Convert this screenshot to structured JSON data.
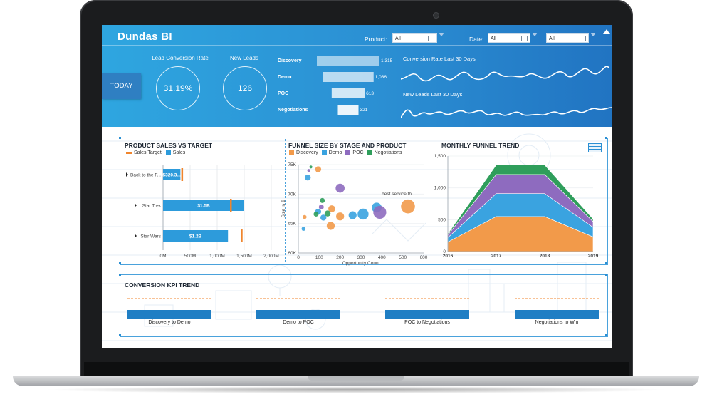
{
  "header": {
    "logo": "Dundas BI",
    "filters": {
      "product_label": "Product:",
      "product_value": "All",
      "date_label": "Date:",
      "date_from": "All",
      "date_to": "All"
    },
    "today_button": "TODAY",
    "kpis": [
      {
        "title": "Lead Conversion Rate",
        "value": "31.19%"
      },
      {
        "title": "New Leads",
        "value": "126"
      }
    ],
    "funnel_bars": [
      {
        "label": "Discovery",
        "value": "1,315",
        "num": 1315
      },
      {
        "label": "Demo",
        "value": "1,036",
        "num": 1036
      },
      {
        "label": "POC",
        "value": "613",
        "num": 613
      },
      {
        "label": "Negotiations",
        "value": "321",
        "num": 321
      }
    ],
    "spark_titles": {
      "conversion": "Conversion Rate Last 30 Days",
      "leads": "New Leads Last 30 Days"
    }
  },
  "sales_vs_target": {
    "title": "PRODUCT SALES VS TARGET",
    "legend": [
      "Sales Target",
      "Sales"
    ],
    "colors": {
      "sales": "#2d9bdb",
      "target": "#f0852d"
    },
    "chart_data": {
      "type": "bar",
      "categories": [
        "Back to the F...",
        "Star Trek",
        "Star Wars"
      ],
      "series": [
        {
          "name": "Sales",
          "values": [
            320300000,
            1500000000,
            1200000000
          ],
          "labels": [
            "$320.3...",
            "$1.5B",
            "$1.2B"
          ]
        },
        {
          "name": "Sales Target",
          "values": [
            350000000,
            1250000000,
            1450000000
          ]
        }
      ],
      "xlim": [
        0,
        2000000000
      ],
      "xticks": [
        "0M",
        "500M",
        "1,000M",
        "1,500M",
        "2,000M"
      ]
    }
  },
  "funnel_size": {
    "title": "FUNNEL SIZE BY STAGE AND PRODUCT",
    "legend": [
      "Discovery",
      "Demo",
      "POC",
      "Negotiations"
    ],
    "colors": {
      "Discovery": "#f29a4a",
      "Demo": "#3aa3e0",
      "POC": "#8e6bbf",
      "Negotiations": "#2f9e5b"
    },
    "ylabel": "Size in $",
    "xlabel": "Opportunity Count",
    "annotation": "best service th...",
    "chart_data": {
      "type": "scatter",
      "xlim": [
        0,
        600
      ],
      "ylim": [
        60,
        75
      ],
      "xticks": [
        "0",
        "100",
        "200",
        "300",
        "400",
        "500",
        "600"
      ],
      "yticks": [
        "60K",
        "65K",
        "70K",
        "75K"
      ],
      "points": [
        {
          "series": "Discovery",
          "x": 95,
          "y": 74.2,
          "r": 6
        },
        {
          "series": "Discovery",
          "x": 160,
          "y": 67.5,
          "r": 7
        },
        {
          "series": "Discovery",
          "x": 200,
          "y": 66.2,
          "r": 8
        },
        {
          "series": "Discovery",
          "x": 155,
          "y": 64.6,
          "r": 8
        },
        {
          "series": "Discovery",
          "x": 525,
          "y": 67.9,
          "r": 14
        },
        {
          "series": "Discovery",
          "x": 30,
          "y": 66.1,
          "r": 4
        },
        {
          "series": "Demo",
          "x": 45,
          "y": 72.8,
          "r": 6
        },
        {
          "series": "Demo",
          "x": 95,
          "y": 67.0,
          "r": 6
        },
        {
          "series": "Demo",
          "x": 120,
          "y": 66.0,
          "r": 6
        },
        {
          "series": "Demo",
          "x": 260,
          "y": 66.4,
          "r": 8
        },
        {
          "series": "Demo",
          "x": 310,
          "y": 66.6,
          "r": 11
        },
        {
          "series": "Demo",
          "x": 375,
          "y": 67.7,
          "r": 10
        },
        {
          "series": "Demo",
          "x": 25,
          "y": 64.1,
          "r": 4
        },
        {
          "series": "POC",
          "x": 200,
          "y": 71.0,
          "r": 9
        },
        {
          "series": "POC",
          "x": 390,
          "y": 66.9,
          "r": 13
        },
        {
          "series": "POC",
          "x": 110,
          "y": 67.8,
          "r": 5
        },
        {
          "series": "POC",
          "x": 50,
          "y": 74.0,
          "r": 3
        },
        {
          "series": "Negotiations",
          "x": 60,
          "y": 74.6,
          "r": 3
        },
        {
          "series": "Negotiations",
          "x": 85,
          "y": 66.6,
          "r": 5
        },
        {
          "series": "Negotiations",
          "x": 115,
          "y": 68.9,
          "r": 5
        },
        {
          "series": "Negotiations",
          "x": 140,
          "y": 66.7,
          "r": 6
        }
      ]
    }
  },
  "monthly_trend": {
    "title": "MONTHLY FUNNEL TREND",
    "chart_data": {
      "type": "area",
      "x": [
        "2016",
        "2017",
        "2018",
        "2019"
      ],
      "ylim": [
        0,
        1500
      ],
      "yticks": [
        "0",
        "500",
        "1,000",
        "1,500"
      ],
      "series": [
        {
          "name": "Discovery",
          "values": [
            150,
            550,
            550,
            230
          ],
          "color": "#f29a4a"
        },
        {
          "name": "Demo",
          "values": [
            70,
            360,
            360,
            150
          ],
          "color": "#3aa3e0"
        },
        {
          "name": "POC",
          "values": [
            40,
            300,
            300,
            90
          ],
          "color": "#8e6bbf"
        },
        {
          "name": "Negotiations",
          "values": [
            20,
            150,
            150,
            40
          ],
          "color": "#2f9e5b"
        }
      ]
    }
  },
  "conversion_kpi": {
    "title": "CONVERSION KPI TREND",
    "items": [
      "Discovery to Demo",
      "Demo to POC",
      "POC to Negotiations",
      "Negotiations to Win"
    ]
  }
}
